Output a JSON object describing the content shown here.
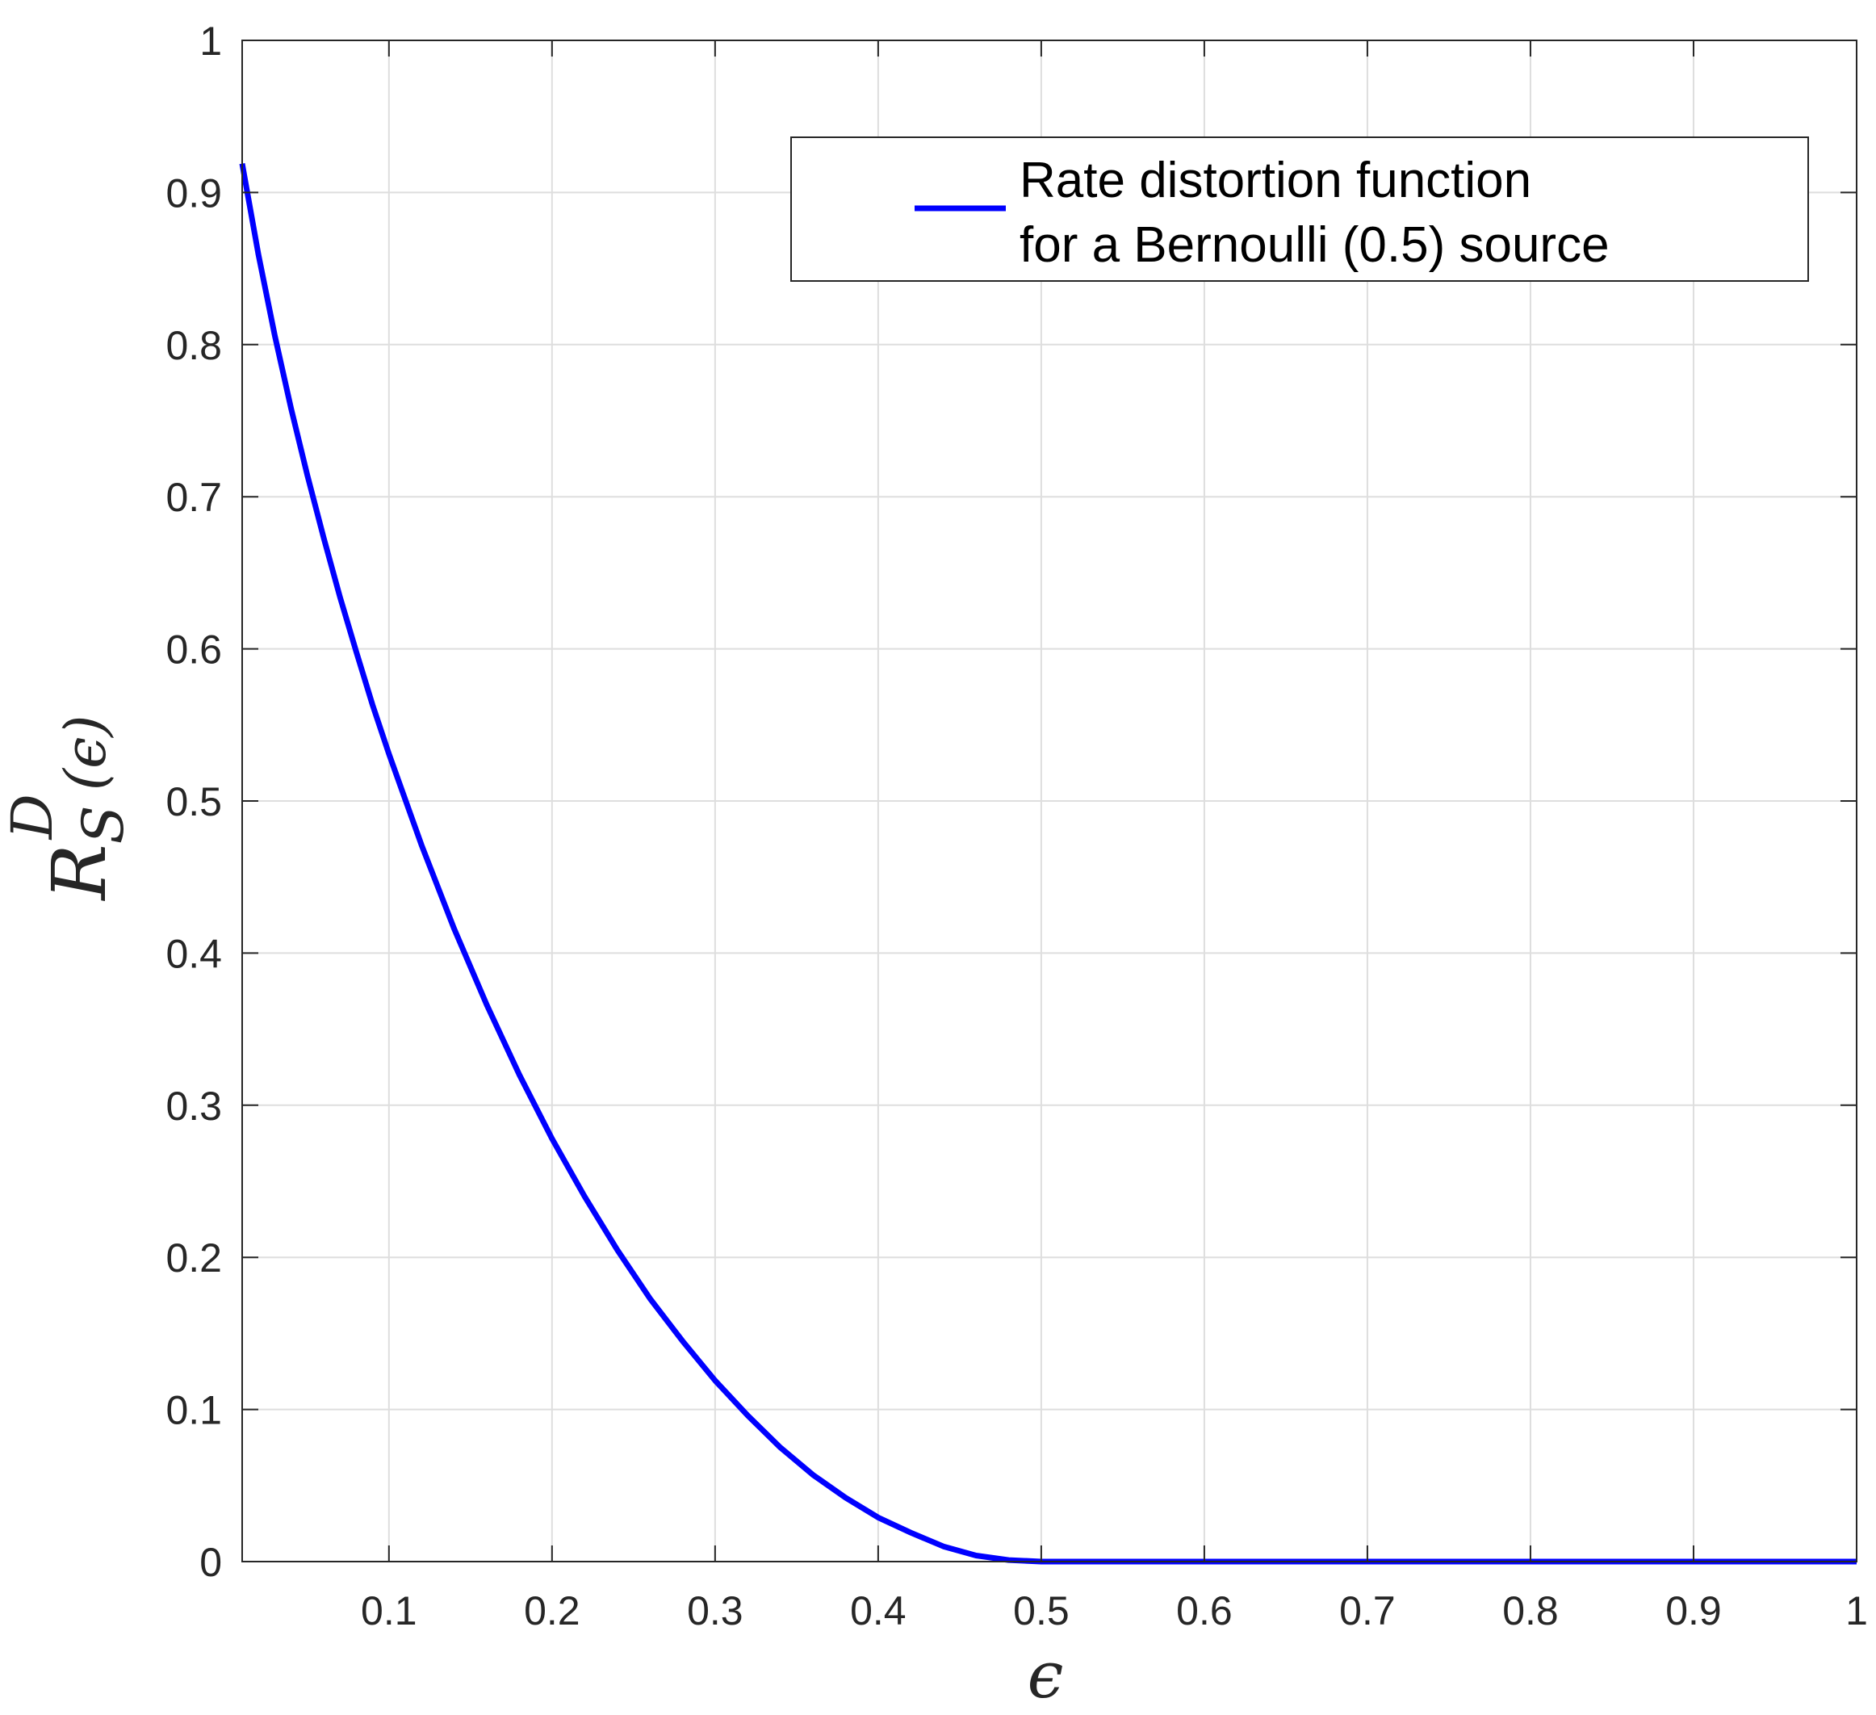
{
  "chart_data": {
    "type": "line",
    "title": "",
    "xlabel": "ϵ",
    "ylabel": {
      "base": "R",
      "superscript": "D",
      "subscript": "S",
      "argument": "(ϵ)"
    },
    "xlim": [
      0.01,
      1
    ],
    "ylim": [
      0,
      1
    ],
    "x_ticks": [
      0.1,
      0.2,
      0.3,
      0.4,
      0.5,
      0.6,
      0.7,
      0.8,
      0.9,
      1
    ],
    "x_tick_labels": [
      "0.1",
      "0.2",
      "0.3",
      "0.4",
      "0.5",
      "0.6",
      "0.7",
      "0.8",
      "0.9",
      "1"
    ],
    "y_ticks": [
      0,
      0.1,
      0.2,
      0.3,
      0.4,
      0.5,
      0.6,
      0.7,
      0.8,
      0.9,
      1
    ],
    "y_tick_labels": [
      "0",
      "0.1",
      "0.2",
      "0.3",
      "0.4",
      "0.5",
      "0.6",
      "0.7",
      "0.8",
      "0.9",
      "1"
    ],
    "grid": true,
    "legend_position": "top-right",
    "series": [
      {
        "name": "Rate distortion function for a Bernoulli (0.5) source",
        "legend_lines": [
          "Rate distortion function",
          "for a Bernoulli (0.5) source"
        ],
        "color": "#0000ff",
        "x": [
          0.01,
          0.02,
          0.03,
          0.04,
          0.05,
          0.06,
          0.07,
          0.08,
          0.09,
          0.1,
          0.12,
          0.14,
          0.16,
          0.18,
          0.2,
          0.22,
          0.24,
          0.26,
          0.28,
          0.3,
          0.32,
          0.34,
          0.36,
          0.38,
          0.4,
          0.42,
          0.44,
          0.46,
          0.48,
          0.5,
          0.6,
          0.7,
          0.8,
          0.9,
          1.0
        ],
        "y": [
          0.919,
          0.859,
          0.806,
          0.758,
          0.714,
          0.673,
          0.634,
          0.598,
          0.563,
          0.531,
          0.471,
          0.416,
          0.366,
          0.32,
          0.278,
          0.24,
          0.205,
          0.173,
          0.145,
          0.119,
          0.096,
          0.075,
          0.057,
          0.042,
          0.029,
          0.019,
          0.01,
          0.004,
          0.001,
          0.0,
          0.0,
          0.0,
          0.0,
          0.0,
          0.0
        ]
      }
    ]
  }
}
